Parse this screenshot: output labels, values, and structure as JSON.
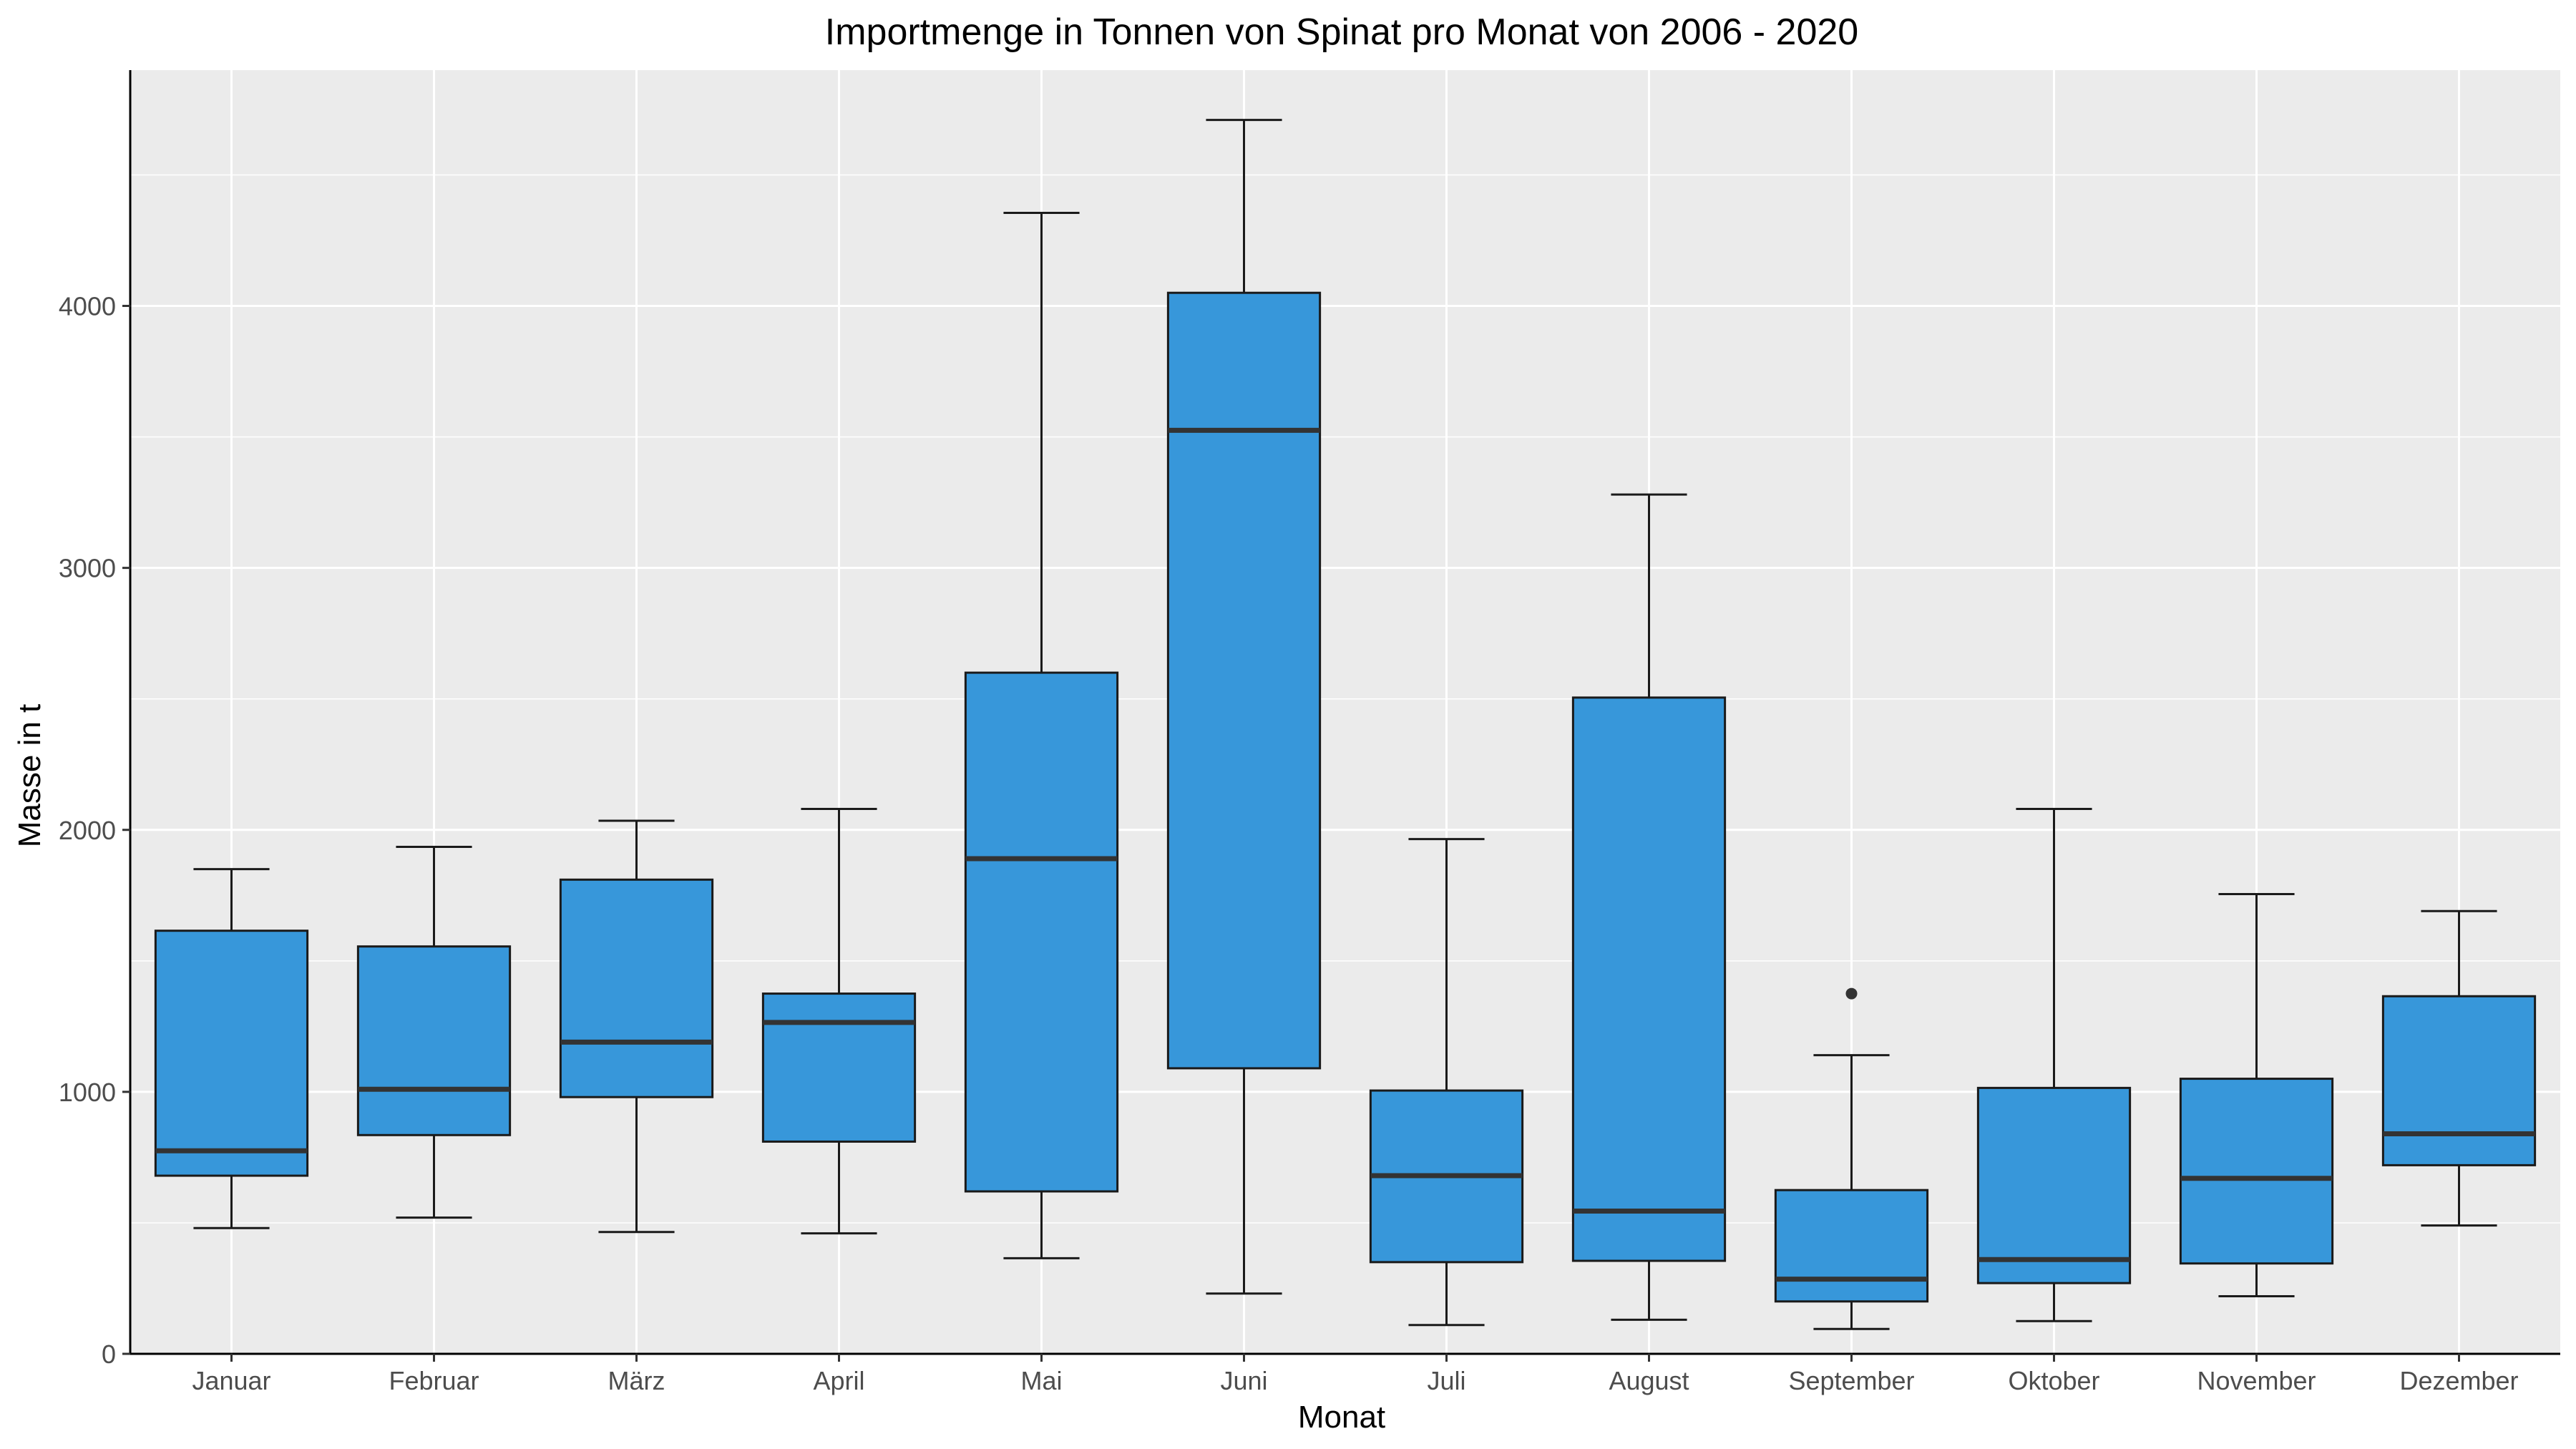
{
  "chart_data": {
    "type": "boxplot",
    "title": "Importmenge in Tonnen von Spinat pro Monat von 2006 - 2020",
    "xlabel": "Monat",
    "ylabel": "Masse in t",
    "ylim": [
      0,
      4900
    ],
    "yticks": [
      0,
      1000,
      2000,
      3000,
      4000
    ],
    "grid": true,
    "legend": "none",
    "colors": {
      "panel": "#EBEBEB",
      "grid": "#FFFFFF",
      "box_fill": "#3797DA",
      "box_stroke": "#1a1a1a",
      "median": "#333333",
      "axis": "#000000",
      "outlier": "#333333"
    },
    "categories": [
      "Januar",
      "Februar",
      "März",
      "April",
      "Mai",
      "Juni",
      "Juli",
      "August",
      "September",
      "Oktober",
      "November",
      "Dezember"
    ],
    "boxes": [
      {
        "min": 480,
        "q1": 680,
        "median": 775,
        "q3": 1615,
        "max": 1850,
        "outliers": []
      },
      {
        "min": 520,
        "q1": 835,
        "median": 1010,
        "q3": 1555,
        "max": 1935,
        "outliers": []
      },
      {
        "min": 465,
        "q1": 980,
        "median": 1190,
        "q3": 1810,
        "max": 2035,
        "outliers": []
      },
      {
        "min": 460,
        "q1": 810,
        "median": 1265,
        "q3": 1375,
        "max": 2080,
        "outliers": []
      },
      {
        "min": 365,
        "q1": 620,
        "median": 1890,
        "q3": 2600,
        "max": 4355,
        "outliers": []
      },
      {
        "min": 230,
        "q1": 1090,
        "median": 3525,
        "q3": 4050,
        "max": 4710,
        "outliers": []
      },
      {
        "min": 110,
        "q1": 350,
        "median": 680,
        "q3": 1005,
        "max": 1965,
        "outliers": []
      },
      {
        "min": 130,
        "q1": 355,
        "median": 545,
        "q3": 2505,
        "max": 3280,
        "outliers": []
      },
      {
        "min": 95,
        "q1": 200,
        "median": 285,
        "q3": 625,
        "max": 1140,
        "outliers": [
          1375
        ]
      },
      {
        "min": 125,
        "q1": 270,
        "median": 360,
        "q3": 1015,
        "max": 2080,
        "outliers": []
      },
      {
        "min": 220,
        "q1": 345,
        "median": 670,
        "q3": 1050,
        "max": 1755,
        "outliers": []
      },
      {
        "min": 490,
        "q1": 720,
        "median": 840,
        "q3": 1365,
        "max": 1690,
        "outliers": []
      }
    ]
  }
}
